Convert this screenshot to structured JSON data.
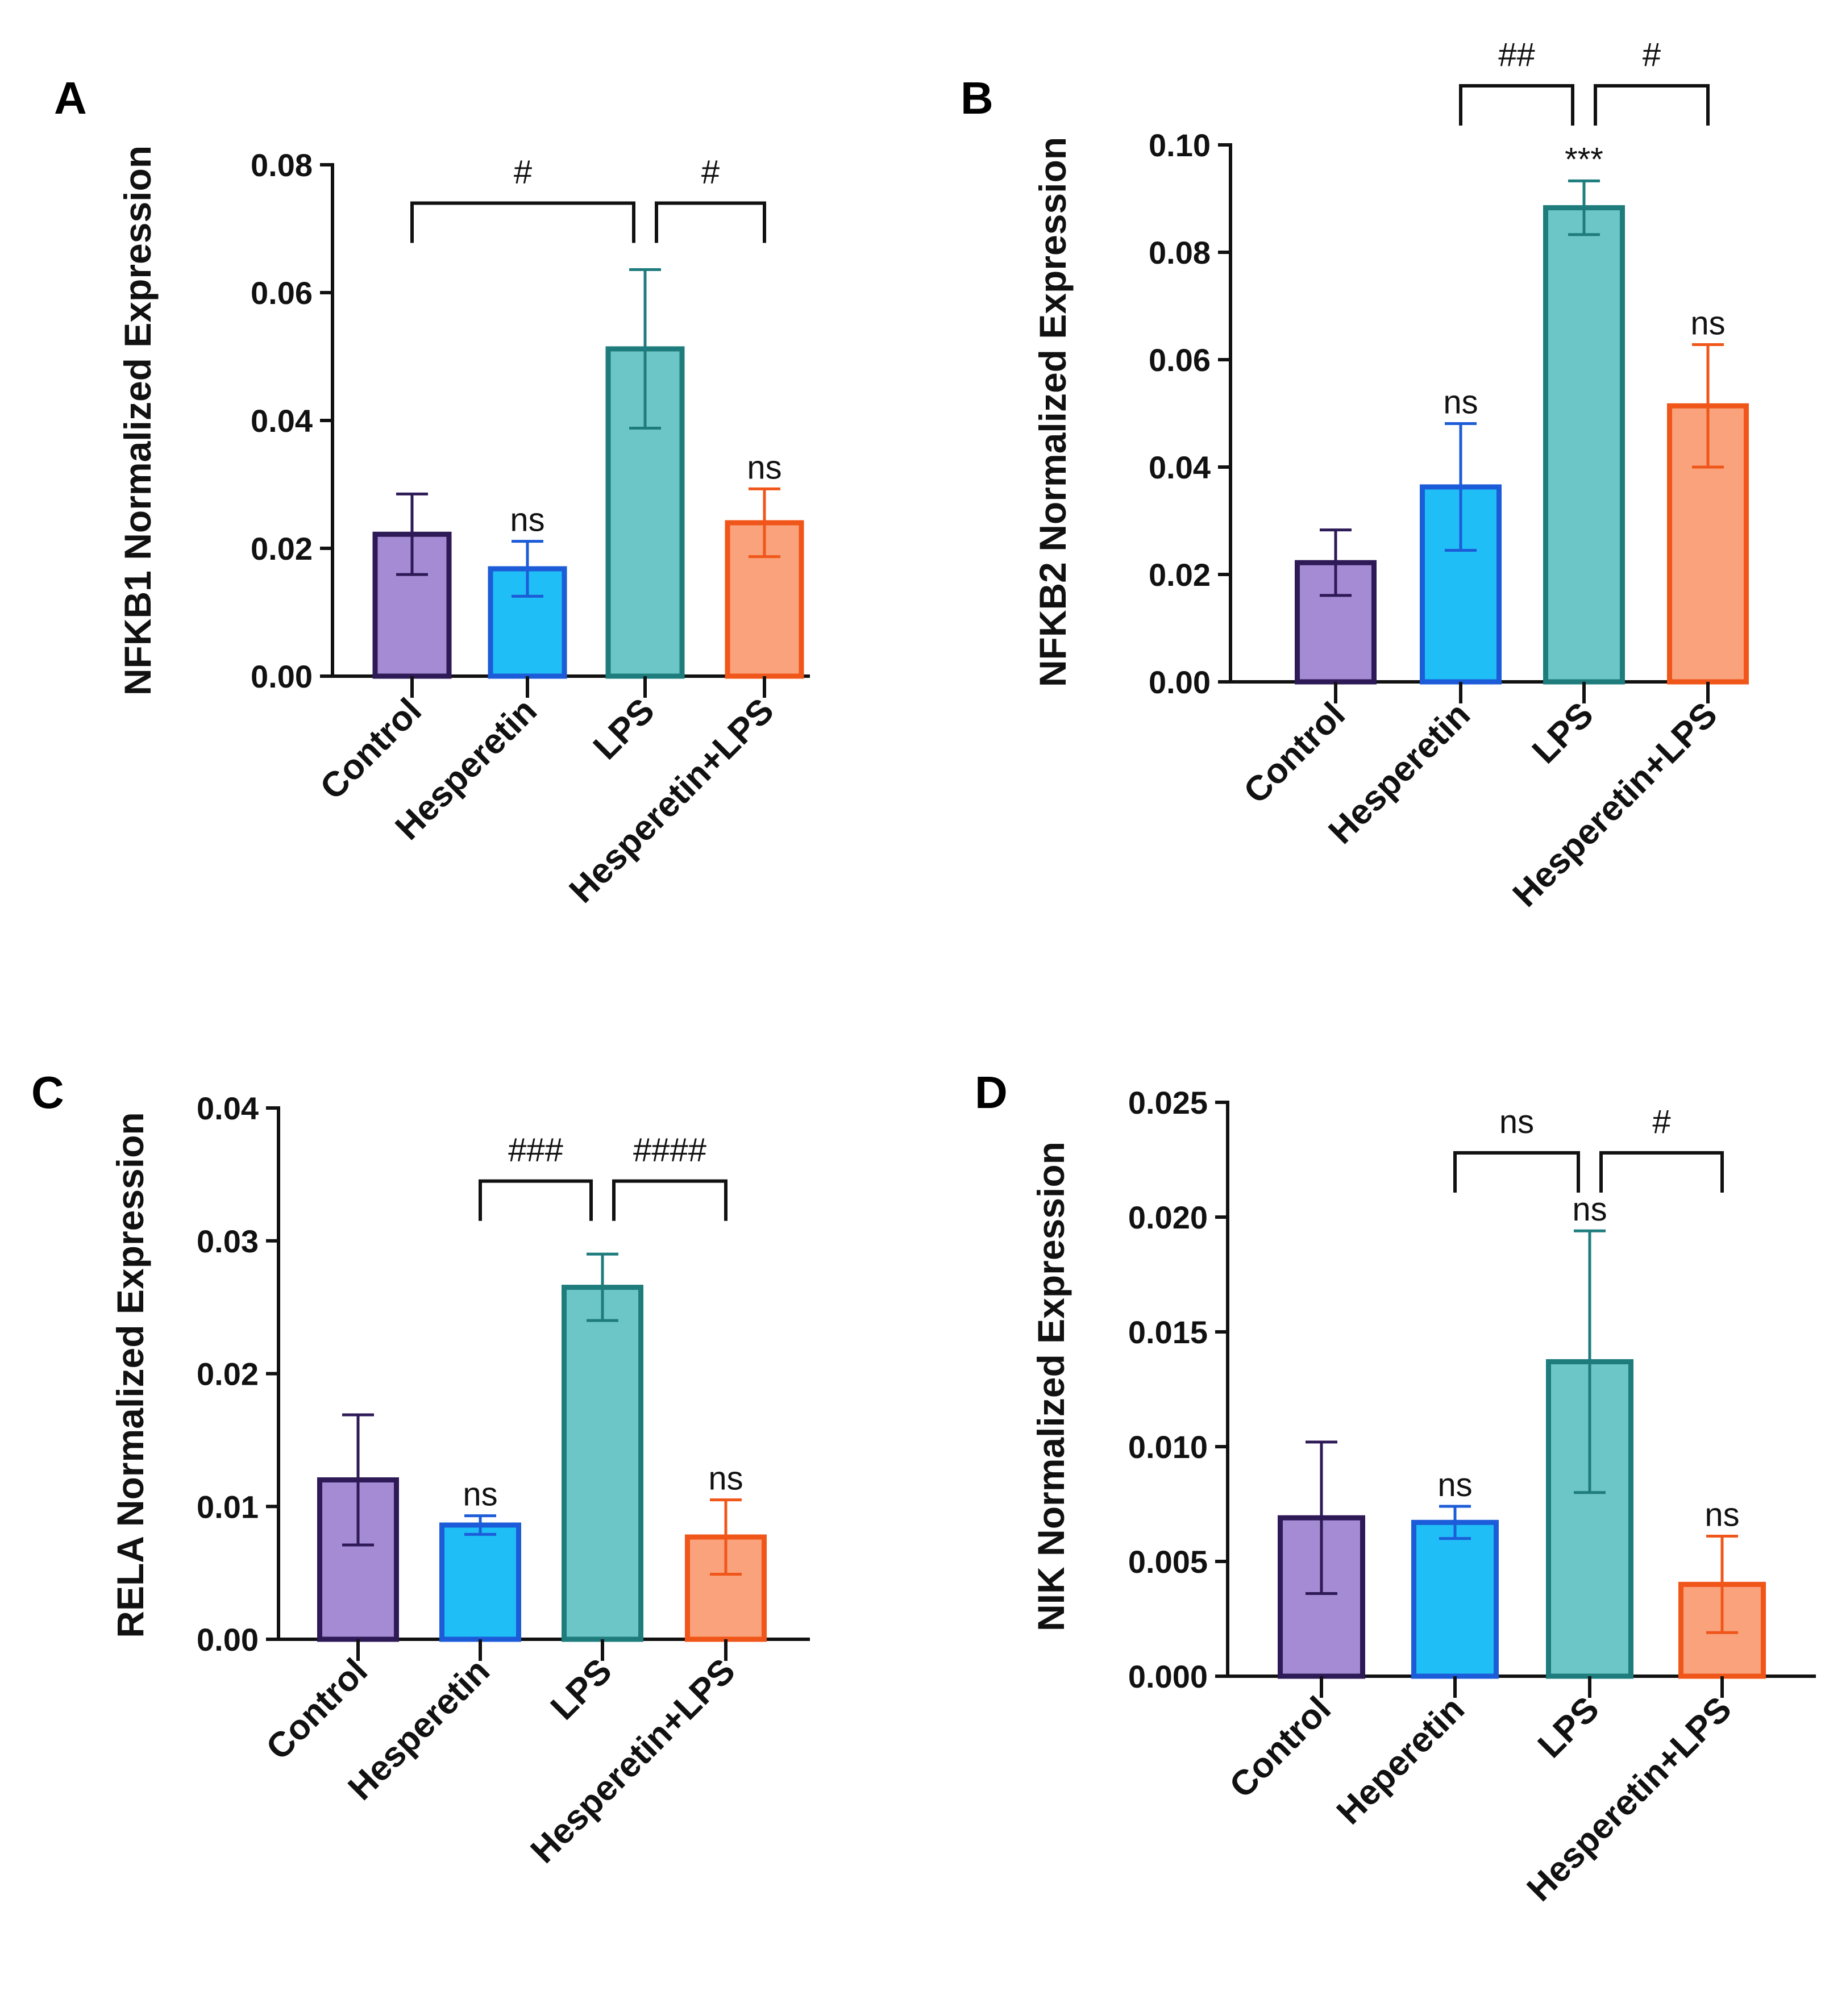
{
  "chart_data": [
    {
      "panel": "A",
      "type": "bar",
      "ylabel": "NFKB1 Normalized Expression",
      "yticks": [
        "0.00",
        "0.02",
        "0.04",
        "0.06",
        "0.08"
      ],
      "ylim": [
        0,
        0.08
      ],
      "categories": [
        "Control",
        "Hesperetin",
        "LPS",
        "Hesperetin+LPS"
      ],
      "values": [
        0.0222,
        0.0168,
        0.0512,
        0.024
      ],
      "errors": [
        0.0063,
        0.0043,
        0.0124,
        0.0053
      ],
      "bar_annotations": [
        "",
        "ns",
        "",
        "ns"
      ],
      "comparisons": [
        {
          "from": 0,
          "to": 2,
          "label": "#",
          "level": 0.074
        },
        {
          "from": 2,
          "to": 3,
          "label": "#",
          "level": 0.074
        }
      ]
    },
    {
      "panel": "B",
      "type": "bar",
      "ylabel": "NFKB2 Normalized Expression",
      "yticks": [
        "0.00",
        "0.02",
        "0.04",
        "0.06",
        "0.08",
        "0.10"
      ],
      "ylim": [
        0,
        0.1
      ],
      "categories": [
        "Control",
        "Hesperetin",
        "LPS",
        "Hesperetin+LPS"
      ],
      "values": [
        0.0222,
        0.0363,
        0.0883,
        0.0514
      ],
      "errors": [
        0.0061,
        0.0118,
        0.005,
        0.0114
      ],
      "bar_annotations": [
        "",
        "ns",
        "***",
        "ns"
      ],
      "comparisons": [
        {
          "from": 1,
          "to": 2,
          "label": "##",
          "level": 0.111
        },
        {
          "from": 2,
          "to": 3,
          "label": "#",
          "level": 0.111
        }
      ]
    },
    {
      "panel": "C",
      "type": "bar",
      "ylabel": "RELA Normalized Expression",
      "yticks": [
        "0.00",
        "0.01",
        "0.02",
        "0.03",
        "0.04"
      ],
      "ylim": [
        0,
        0.04
      ],
      "categories": [
        "Control",
        "Hesperetin",
        "LPS",
        "Hesperetin+LPS"
      ],
      "values": [
        0.012,
        0.0086,
        0.0265,
        0.0077
      ],
      "errors": [
        0.0049,
        0.0007,
        0.0025,
        0.0028
      ],
      "bar_annotations": [
        "",
        "ns",
        "",
        "ns"
      ],
      "comparisons": [
        {
          "from": 1,
          "to": 2,
          "label": "###",
          "level": 0.0345
        },
        {
          "from": 2,
          "to": 3,
          "label": "####",
          "level": 0.0345
        }
      ]
    },
    {
      "panel": "D",
      "type": "bar",
      "ylabel": "NIK Normalized Expression",
      "yticks": [
        "0.000",
        "0.005",
        "0.010",
        "0.015",
        "0.020",
        "0.025"
      ],
      "ylim": [
        0,
        0.025
      ],
      "categories": [
        "Control",
        "Heperetin",
        "LPS",
        "Hesperetin+LPS"
      ],
      "values": [
        0.0069,
        0.0067,
        0.0137,
        0.004
      ],
      "errors": [
        0.0033,
        0.0007,
        0.0057,
        0.0021
      ],
      "bar_annotations": [
        "",
        "ns",
        "ns",
        "ns"
      ],
      "comparisons": [
        {
          "from": 1,
          "to": 2,
          "label": "ns",
          "level": 0.0228
        },
        {
          "from": 2,
          "to": 3,
          "label": "#",
          "level": 0.0228
        }
      ]
    }
  ],
  "colors": {
    "fills": [
      "#a58bd4",
      "#1fbef6",
      "#6cc6c8",
      "#f9a27c"
    ],
    "edges": [
      "#2d1a56",
      "#1d5cd8",
      "#1e7c7d",
      "#f0561a"
    ]
  }
}
